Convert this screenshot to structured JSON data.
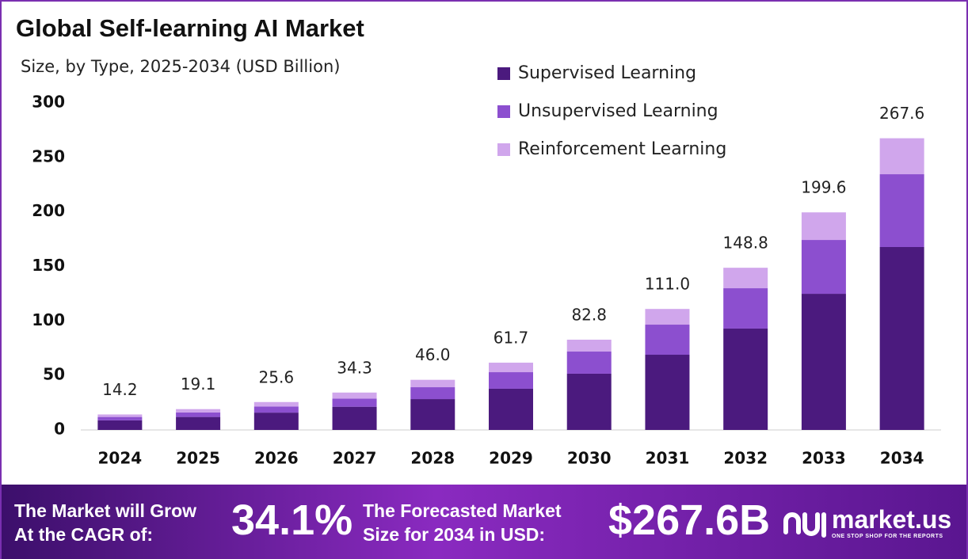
{
  "chart_data": {
    "type": "stacked_bar",
    "title": "Global Self-learning AI Market",
    "subtitle": "Size, by Type, 2025-2034 (USD Billion)",
    "categories": [
      "2024",
      "2025",
      "2026",
      "2027",
      "2028",
      "2029",
      "2030",
      "2031",
      "2032",
      "2033",
      "2034"
    ],
    "series": [
      {
        "name": "Supervised Learning",
        "color": "#4b1a7e",
        "values": [
          8.8,
          11.9,
          15.9,
          21.3,
          28.3,
          37.8,
          51.6,
          69.0,
          93.0,
          124.9,
          167.8
        ]
      },
      {
        "name": "Unsupervised Learning",
        "color": "#8c4fcf",
        "values": [
          3.1,
          4.2,
          5.6,
          7.5,
          10.9,
          15.2,
          20.3,
          27.6,
          37.0,
          49.4,
          66.8
        ]
      },
      {
        "name": "Reinforcement Learning",
        "color": "#d0a6ec",
        "values": [
          2.3,
          3.0,
          4.1,
          5.5,
          6.8,
          8.7,
          10.9,
          14.4,
          18.8,
          25.3,
          33.0
        ]
      }
    ],
    "totals": [
      14.2,
      19.1,
      25.6,
      34.3,
      46.0,
      61.7,
      82.8,
      111.0,
      148.8,
      199.6,
      267.6
    ],
    "total_labels": [
      "14.2",
      "19.1",
      "25.6",
      "34.3",
      "46.0",
      "61.7",
      "82.8",
      "111.0",
      "148.8",
      "199.6",
      "267.6"
    ],
    "ylim": [
      0,
      300
    ],
    "yticks": [
      0,
      50,
      100,
      150,
      200,
      250,
      300
    ],
    "grid": false,
    "legend": "top-right"
  },
  "footer": {
    "cagr_caption": [
      "The Market will Grow",
      "At the CAGR of:"
    ],
    "cagr_value": "34.1%",
    "forecast_caption": [
      "The Forecasted Market",
      "Size for 2034 in USD:"
    ],
    "forecast_value": "$267.6B",
    "brand": "market.us",
    "tagline": "ONE STOP SHOP FOR THE REPORTS"
  }
}
